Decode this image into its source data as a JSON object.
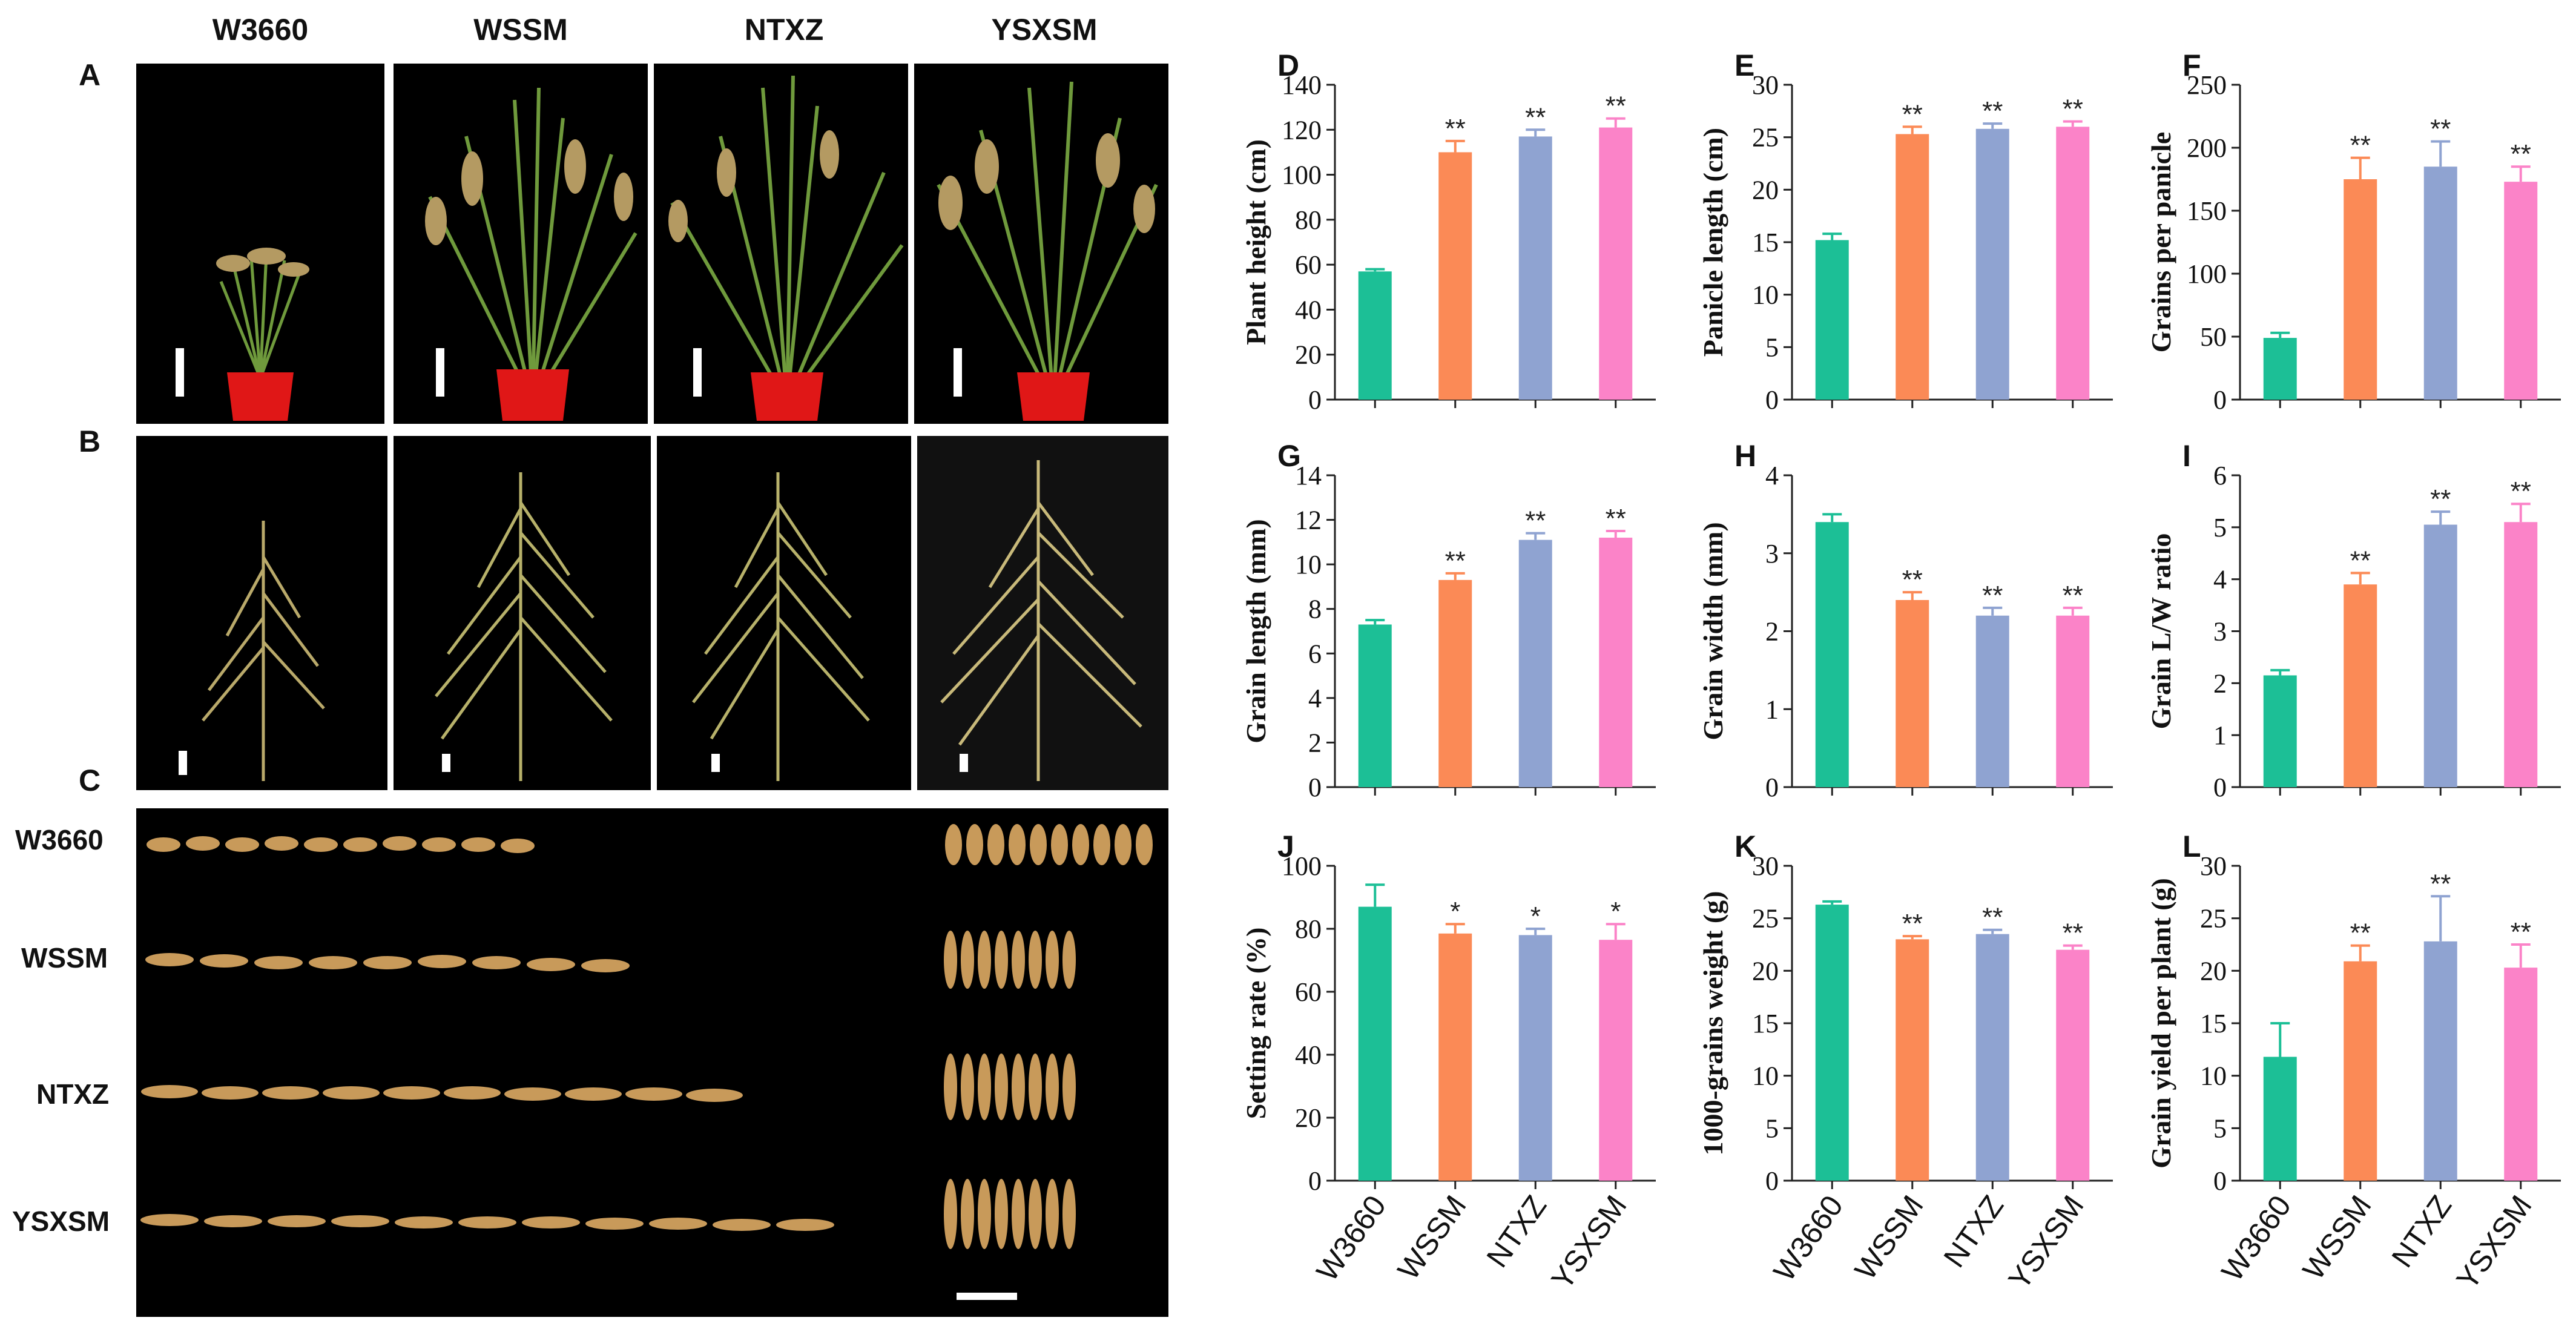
{
  "photos": {
    "columns": [
      "W3660",
      "WSSM",
      "NTXZ",
      "YSXSM"
    ],
    "panel_labels": [
      "A",
      "B",
      "C"
    ],
    "grain_rows": [
      "W3660",
      "WSSM",
      "NTXZ",
      "YSXSM"
    ]
  },
  "colors": {
    "W3660": "#1cbf96",
    "WSSM": "#fb8a56",
    "NTXZ": "#8fa3d1",
    "YSXSM": "#fb83c8",
    "plant": "#6f9a3c",
    "pot": "#e01717",
    "grain": "#c89a5a"
  },
  "chart_data": [
    {
      "panel": "D",
      "type": "bar",
      "categories": [
        "W3660",
        "WSSM",
        "NTXZ",
        "YSXSM"
      ],
      "values": [
        57,
        110,
        117,
        121
      ],
      "errors": [
        1,
        5,
        3,
        4
      ],
      "significance": [
        "",
        "**",
        "**",
        "**"
      ],
      "ylabel": "Plant height (cm)",
      "ylim": [
        0,
        140
      ],
      "yticks": [
        0,
        20,
        40,
        60,
        80,
        100,
        120,
        140
      ]
    },
    {
      "panel": "E",
      "type": "bar",
      "categories": [
        "W3660",
        "WSSM",
        "NTXZ",
        "YSXSM"
      ],
      "values": [
        15.2,
        25.3,
        25.8,
        26
      ],
      "errors": [
        0.6,
        0.7,
        0.5,
        0.5
      ],
      "significance": [
        "",
        "**",
        "**",
        "**"
      ],
      "ylabel": "Panicle length (cm)",
      "ylim": [
        0,
        30
      ],
      "yticks": [
        0,
        5,
        10,
        15,
        20,
        25,
        30
      ]
    },
    {
      "panel": "F",
      "type": "bar",
      "categories": [
        "W3660",
        "WSSM",
        "NTXZ",
        "YSXSM"
      ],
      "values": [
        49,
        175,
        185,
        173
      ],
      "errors": [
        4,
        17,
        20,
        12
      ],
      "significance": [
        "",
        "**",
        "**",
        "**"
      ],
      "ylabel": "Grains per panicle",
      "ylim": [
        0,
        250
      ],
      "yticks": [
        0,
        50,
        100,
        150,
        200,
        250
      ]
    },
    {
      "panel": "G",
      "type": "bar",
      "categories": [
        "W3660",
        "WSSM",
        "NTXZ",
        "YSXSM"
      ],
      "values": [
        7.3,
        9.3,
        11.1,
        11.2
      ],
      "errors": [
        0.2,
        0.3,
        0.3,
        0.3
      ],
      "significance": [
        "",
        "**",
        "**",
        "**"
      ],
      "ylabel": "Grain length (mm)",
      "ylim": [
        0,
        14
      ],
      "yticks": [
        0,
        2,
        4,
        6,
        8,
        10,
        12,
        14
      ]
    },
    {
      "panel": "H",
      "type": "bar",
      "categories": [
        "W3660",
        "WSSM",
        "NTXZ",
        "YSXSM"
      ],
      "values": [
        3.4,
        2.4,
        2.2,
        2.2
      ],
      "errors": [
        0.1,
        0.1,
        0.1,
        0.1
      ],
      "significance": [
        "",
        "**",
        "**",
        "**"
      ],
      "ylabel": "Grain width (mm)",
      "ylim": [
        0,
        4
      ],
      "yticks": [
        0,
        1,
        2,
        3,
        4
      ]
    },
    {
      "panel": "I",
      "type": "bar",
      "categories": [
        "W3660",
        "WSSM",
        "NTXZ",
        "YSXSM"
      ],
      "values": [
        2.15,
        3.9,
        5.05,
        5.1
      ],
      "errors": [
        0.1,
        0.22,
        0.25,
        0.35
      ],
      "significance": [
        "",
        "**",
        "**",
        "**"
      ],
      "ylabel": "Grain L/W ratio",
      "ylim": [
        0,
        6
      ],
      "yticks": [
        0,
        1,
        2,
        3,
        4,
        5,
        6
      ]
    },
    {
      "panel": "J",
      "type": "bar",
      "categories": [
        "W3660",
        "WSSM",
        "NTXZ",
        "YSXSM"
      ],
      "values": [
        87,
        78.5,
        78,
        76.5
      ],
      "errors": [
        7,
        3,
        2,
        5
      ],
      "significance": [
        "",
        "*",
        "*",
        "*"
      ],
      "ylabel": "Setting rate (%)",
      "ylim": [
        0,
        100
      ],
      "yticks": [
        0,
        20,
        40,
        60,
        80,
        100
      ]
    },
    {
      "panel": "K",
      "type": "bar",
      "categories": [
        "W3660",
        "WSSM",
        "NTXZ",
        "YSXSM"
      ],
      "values": [
        26.3,
        23,
        23.5,
        22
      ],
      "errors": [
        0.3,
        0.3,
        0.4,
        0.4
      ],
      "significance": [
        "",
        "**",
        "**",
        "**"
      ],
      "ylabel": "1000-grains weight (g)",
      "ylim": [
        0,
        30
      ],
      "yticks": [
        0,
        5,
        10,
        15,
        20,
        25,
        30
      ]
    },
    {
      "panel": "L",
      "type": "bar",
      "categories": [
        "W3660",
        "WSSM",
        "NTXZ",
        "YSXSM"
      ],
      "values": [
        11.8,
        20.9,
        22.8,
        20.3
      ],
      "errors": [
        3.2,
        1.5,
        4.3,
        2.2
      ],
      "significance": [
        "",
        "**",
        "**",
        "**"
      ],
      "ylabel": "Grain yield per plant (g)",
      "ylim": [
        0,
        30
      ],
      "yticks": [
        0,
        5,
        10,
        15,
        20,
        25,
        30
      ]
    }
  ]
}
